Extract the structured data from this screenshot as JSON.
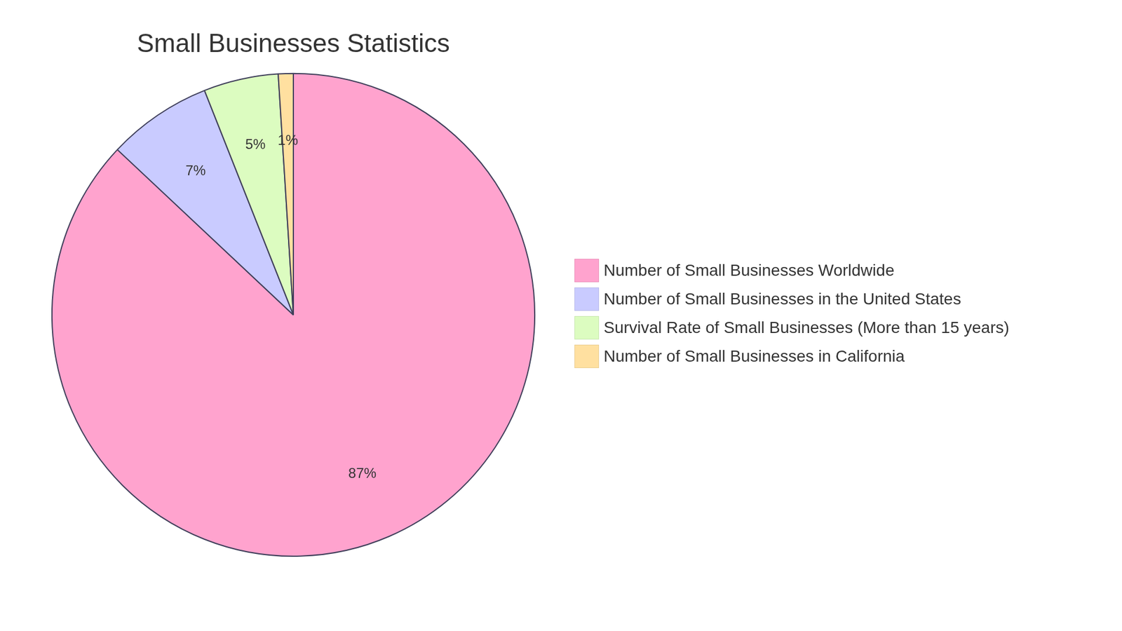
{
  "chart_data": {
    "type": "pie",
    "title": "Small Businesses Statistics",
    "categories": [
      "Number of Small Businesses Worldwide",
      "Number of Small Businesses in the United States",
      "Survival Rate of Small Businesses (More than 15 years)",
      "Number of Small Businesses in California"
    ],
    "values": [
      87,
      7,
      5,
      1
    ],
    "value_labels": [
      "87%",
      "7%",
      "5%",
      "1%"
    ],
    "colors": [
      "#ffa3ce",
      "#c9cbff",
      "#dcfcc0",
      "#ffe0a0"
    ],
    "data_labels": true,
    "legend": "right"
  }
}
